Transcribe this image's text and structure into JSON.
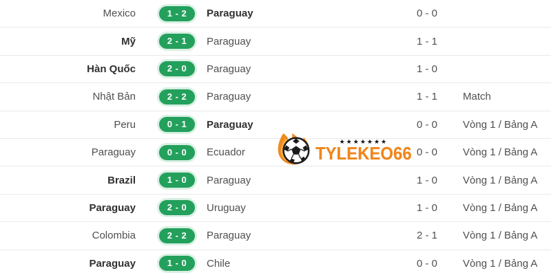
{
  "page": {
    "background": "#ffffff",
    "divider_color": "#e9e9e9"
  },
  "colors": {
    "badge_green": "#23a05c",
    "badge_halo": "#d9f0e3",
    "team_text": "#4f4f4f",
    "team_text_bold": "#303030",
    "brand_orange": "#f0861c"
  },
  "watermark": {
    "brand": "TYLEKEO66",
    "stars": "★★★★★★★",
    "icon": "flame-soccer-ball-icon"
  },
  "matches": [
    {
      "home": "Mexico",
      "home_bold": false,
      "score": "1 - 2",
      "away": "Paraguay",
      "away_bold": true,
      "ht": "0 - 0",
      "info": ""
    },
    {
      "home": "Mỹ",
      "home_bold": true,
      "score": "2 - 1",
      "away": "Paraguay",
      "away_bold": false,
      "ht": "1 - 1",
      "info": ""
    },
    {
      "home": "Hàn Quốc",
      "home_bold": true,
      "score": "2 - 0",
      "away": "Paraguay",
      "away_bold": false,
      "ht": "1 - 0",
      "info": ""
    },
    {
      "home": "Nhật Bản",
      "home_bold": false,
      "score": "2 - 2",
      "away": "Paraguay",
      "away_bold": false,
      "ht": "1 - 1",
      "info": "Match"
    },
    {
      "home": "Peru",
      "home_bold": false,
      "score": "0 - 1",
      "away": "Paraguay",
      "away_bold": true,
      "ht": "0 - 0",
      "info": "Vòng 1 / Bảng A"
    },
    {
      "home": "Paraguay",
      "home_bold": false,
      "score": "0 - 0",
      "away": "Ecuador",
      "away_bold": false,
      "ht": "0 - 0",
      "info": "Vòng 1 / Bảng A"
    },
    {
      "home": "Brazil",
      "home_bold": true,
      "score": "1 - 0",
      "away": "Paraguay",
      "away_bold": false,
      "ht": "1 - 0",
      "info": "Vòng 1 / Bảng A"
    },
    {
      "home": "Paraguay",
      "home_bold": true,
      "score": "2 - 0",
      "away": "Uruguay",
      "away_bold": false,
      "ht": "1 - 0",
      "info": "Vòng 1 / Bảng A"
    },
    {
      "home": "Colombia",
      "home_bold": false,
      "score": "2 - 2",
      "away": "Paraguay",
      "away_bold": false,
      "ht": "2 - 1",
      "info": "Vòng 1 / Bảng A"
    },
    {
      "home": "Paraguay",
      "home_bold": true,
      "score": "1 - 0",
      "away": "Chile",
      "away_bold": false,
      "ht": "0 - 0",
      "info": "Vòng 1 / Bảng A"
    }
  ]
}
